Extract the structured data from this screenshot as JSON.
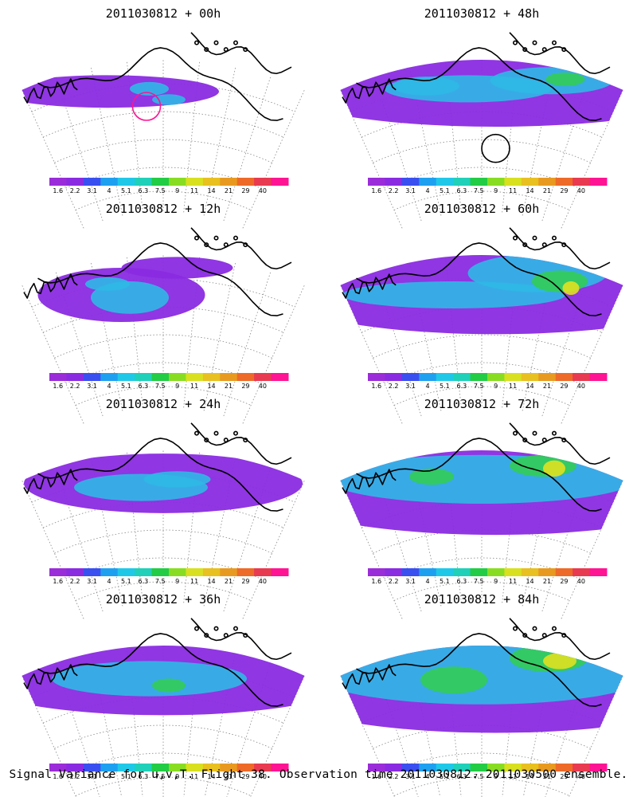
{
  "panels": [
    {
      "title": "2011030812 + 00h",
      "blobs": [
        [
          "V",
          0.3,
          0.44,
          0.4,
          0.12
        ],
        [
          "C",
          0.45,
          0.42,
          0.07,
          0.05
        ],
        [
          "C",
          0.52,
          0.5,
          0.06,
          0.04
        ],
        [
          "V",
          0.8,
          0.1,
          0.1,
          0.05
        ]
      ],
      "ring": {
        "u": 0.44,
        "v": 0.55,
        "r": 0.05,
        "color": "#ff1493"
      }
    },
    {
      "title": "2011030812 + 48h",
      "blobs": [
        [
          "V",
          0.55,
          0.4,
          0.8,
          0.3
        ],
        [
          "C",
          0.45,
          0.42,
          0.3,
          0.1
        ],
        [
          "C",
          0.75,
          0.36,
          0.22,
          0.1
        ],
        [
          "C",
          0.3,
          0.4,
          0.12,
          0.07
        ],
        [
          "G",
          0.8,
          0.35,
          0.07,
          0.05
        ]
      ],
      "ring": {
        "u": 0.55,
        "v": 0.86,
        "r": 0.05,
        "color": "#000000"
      }
    },
    {
      "title": "2011030812 + 12h",
      "blobs": [
        [
          "V",
          0.35,
          0.5,
          0.3,
          0.2
        ],
        [
          "V",
          0.55,
          0.3,
          0.2,
          0.08
        ],
        [
          "C",
          0.38,
          0.52,
          0.14,
          0.12
        ],
        [
          "C",
          0.3,
          0.42,
          0.08,
          0.05
        ]
      ],
      "ring": null
    },
    {
      "title": "2011030812 + 60h",
      "blobs": [
        [
          "V",
          0.55,
          0.45,
          0.82,
          0.34
        ],
        [
          "C",
          0.4,
          0.5,
          0.4,
          0.1
        ],
        [
          "C",
          0.7,
          0.34,
          0.25,
          0.14
        ],
        [
          "G",
          0.78,
          0.4,
          0.1,
          0.08
        ],
        [
          "Y",
          0.82,
          0.45,
          0.03,
          0.05
        ]
      ],
      "ring": null
    },
    {
      "title": "2011030812 + 24h",
      "blobs": [
        [
          "V",
          0.5,
          0.45,
          0.5,
          0.22
        ],
        [
          "C",
          0.42,
          0.48,
          0.24,
          0.1
        ],
        [
          "C",
          0.55,
          0.42,
          0.12,
          0.06
        ]
      ],
      "ring": null
    },
    {
      "title": "2011030812 + 72h",
      "blobs": [
        [
          "V",
          0.55,
          0.45,
          0.85,
          0.38
        ],
        [
          "C",
          0.5,
          0.42,
          0.55,
          0.18
        ],
        [
          "G",
          0.32,
          0.4,
          0.08,
          0.06
        ],
        [
          "G",
          0.72,
          0.32,
          0.12,
          0.08
        ],
        [
          "Y",
          0.76,
          0.34,
          0.04,
          0.06
        ]
      ],
      "ring": null
    },
    {
      "title": "2011030812 + 36h",
      "blobs": [
        [
          "V",
          0.5,
          0.44,
          0.7,
          0.28
        ],
        [
          "C",
          0.45,
          0.45,
          0.35,
          0.13
        ],
        [
          "G",
          0.52,
          0.5,
          0.06,
          0.05
        ]
      ],
      "ring": null
    },
    {
      "title": "2011030812 + 84h",
      "blobs": [
        [
          "V",
          0.55,
          0.45,
          0.88,
          0.4
        ],
        [
          "C",
          0.5,
          0.42,
          0.6,
          0.22
        ],
        [
          "G",
          0.4,
          0.46,
          0.12,
          0.1
        ],
        [
          "G",
          0.74,
          0.3,
          0.14,
          0.1
        ],
        [
          "Y",
          0.78,
          0.32,
          0.06,
          0.06
        ]
      ],
      "ring": null
    }
  ],
  "colorbar": {
    "colors": [
      "#9b2cd9",
      "#8a2be2",
      "#3a4ff0",
      "#1ea0f0",
      "#20c8e8",
      "#20d0b8",
      "#22cc44",
      "#88dd22",
      "#d8e020",
      "#e8c020",
      "#e89a20",
      "#ee6a28",
      "#e83a50",
      "#ff1493"
    ],
    "labels": [
      "1.6",
      "2.2",
      "3.1",
      "4",
      "5.1",
      "6.3",
      "7.5",
      "9",
      "11",
      "14",
      "21",
      "29",
      "40"
    ]
  },
  "caption": "Signal Variance for u,v,T. Flight 38. Observation time 2011030812. 2011030500 ensemble."
}
